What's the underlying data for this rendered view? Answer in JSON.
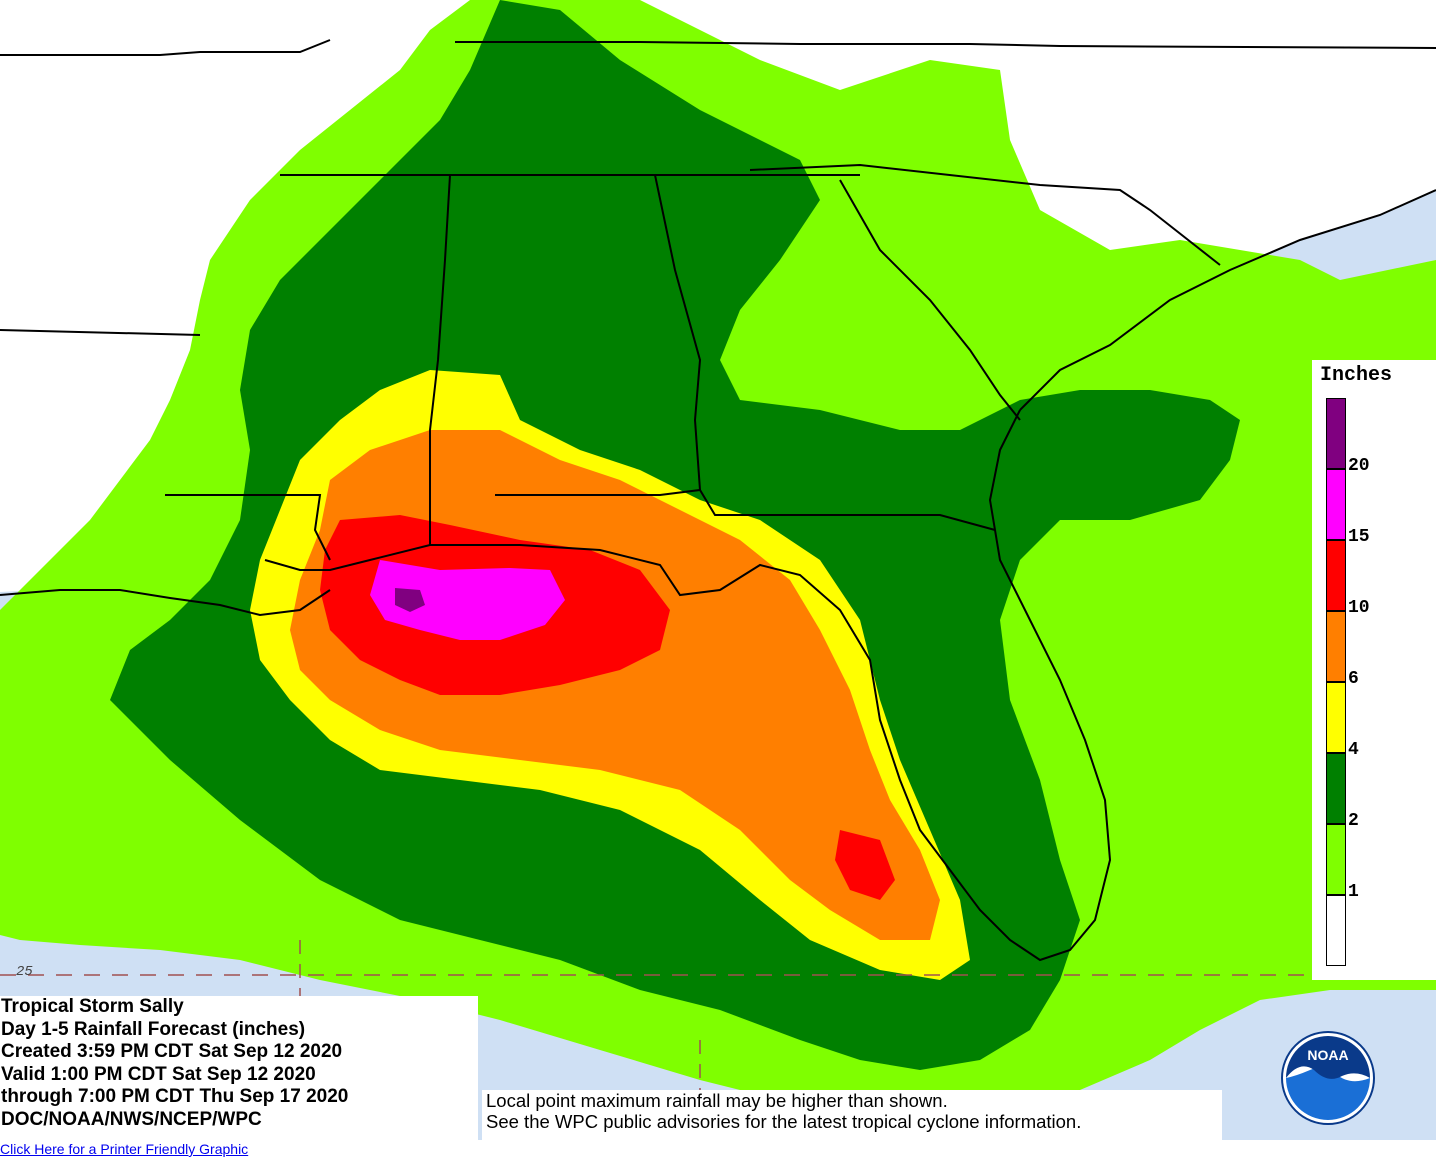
{
  "info": {
    "lines": [
      "Tropical Storm Sally",
      "Day 1-5 Rainfall Forecast (inches)",
      "Created 3:59 PM CDT Sat Sep 12 2020",
      "Valid 1:00 PM CDT Sat Sep 12 2020",
      "through 7:00 PM CDT Thu Sep 17 2020",
      "DOC/NOAA/NWS/NCEP/WPC"
    ]
  },
  "notice": {
    "line1": "Local point maximum rainfall may be higher than shown.",
    "line2": "See the WPC public advisories for the latest tropical cyclone information."
  },
  "legend": {
    "title": "Inches",
    "ticks": [
      "20",
      "15",
      "10",
      "6",
      "4",
      "2",
      "1"
    ],
    "colors": [
      "#800080",
      "#ff00ff",
      "#ff0000",
      "#ff7f00",
      "#ffff00",
      "#008000",
      "#7fff00",
      "#ffffff"
    ]
  },
  "map": {
    "lat_label": "25",
    "colors": {
      "ocean": "#cfe0f4",
      "land": "#ffffff",
      "lt_green": "#7fff00",
      "dk_green": "#008000",
      "yellow": "#ffff00",
      "orange": "#ff7f00",
      "red": "#ff0000",
      "magenta": "#ff00ff",
      "purple": "#800080",
      "outline": "#000000"
    }
  },
  "logo": {
    "text": "NOAA"
  },
  "link": {
    "text": "Click Here for a Printer Friendly Graphic"
  }
}
